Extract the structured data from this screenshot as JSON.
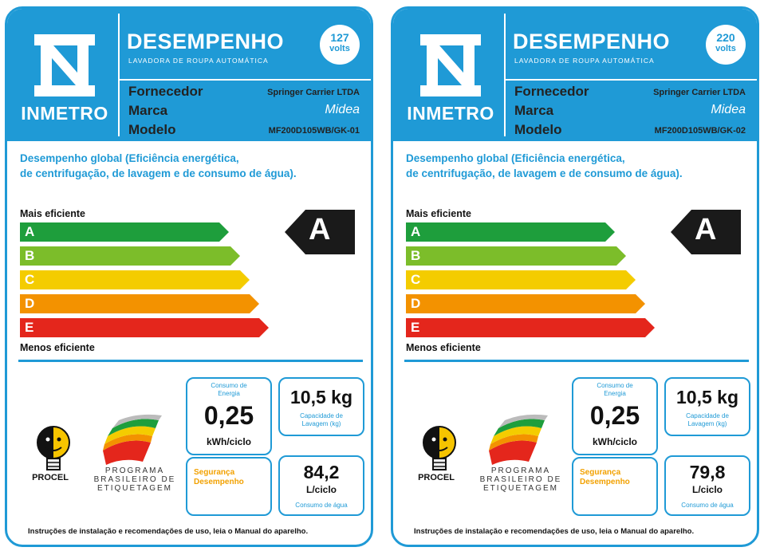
{
  "labels": [
    {
      "logo_text": "INMETRO",
      "title": "DESEMPENHO",
      "subtitle": "LAVADORA DE ROUPA AUTOMÁTICA",
      "volts_value": "127",
      "volts_unit": "volts",
      "fornecedor_label": "Fornecedor",
      "fornecedor_value": "Springer Carrier LTDA",
      "marca_label": "Marca",
      "marca_value": "Midea",
      "modelo_label": "Modelo",
      "modelo_value": "MF200D105WB/GK-01",
      "performance_line1": "Desempenho global (Eficiência energética,",
      "performance_line2": "de centrifugação, de lavagem e de consumo de água).",
      "mais_eficiente": "Mais eficiente",
      "menos_eficiente": "Menos eficiente",
      "classes": [
        "A",
        "B",
        "C",
        "D",
        "E"
      ],
      "rating": "A",
      "energy_caption": "Consumo de Energia",
      "energy_value": "0,25",
      "energy_unit": "kWh/ciclo",
      "capacity_value": "10,5 kg",
      "capacity_caption": "Capacidade de Lavagem (kg)",
      "safety_line1": "Segurança",
      "safety_line2": "Desempenho",
      "water_value": "84,2",
      "water_unit": "L/ciclo",
      "water_caption": "Consumo de água",
      "procel_text": "PROCEL",
      "pbe_line1": "PROGRAMA",
      "pbe_line2": "BRASILEIRO DE",
      "pbe_line3": "ETIQUETAGEM",
      "footer": "Instruções de instalação e recomendações de uso, leia o Manual do aparelho."
    },
    {
      "logo_text": "INMETRO",
      "title": "DESEMPENHO",
      "subtitle": "LAVADORA DE ROUPA AUTOMÁTICA",
      "volts_value": "220",
      "volts_unit": "volts",
      "fornecedor_label": "Fornecedor",
      "fornecedor_value": "Springer Carrier LTDA",
      "marca_label": "Marca",
      "marca_value": "Midea",
      "modelo_label": "Modelo",
      "modelo_value": "MF200D105WB/GK-02",
      "performance_line1": "Desempenho global (Eficiência energética,",
      "performance_line2": "de centrifugação, de lavagem e de consumo de água).",
      "mais_eficiente": "Mais eficiente",
      "menos_eficiente": "Menos eficiente",
      "classes": [
        "A",
        "B",
        "C",
        "D",
        "E"
      ],
      "rating": "A",
      "energy_caption": "Consumo de Energia",
      "energy_value": "0,25",
      "energy_unit": "kWh/ciclo",
      "capacity_value": "10,5 kg",
      "capacity_caption": "Capacidade de Lavagem (kg)",
      "safety_line1": "Segurança",
      "safety_line2": "Desempenho",
      "water_value": "79,8",
      "water_unit": "L/ciclo",
      "water_caption": "Consumo de água",
      "procel_text": "PROCEL",
      "pbe_line1": "PROGRAMA",
      "pbe_line2": "BRASILEIRO DE",
      "pbe_line3": "ETIQUETAGEM",
      "footer": "Instruções de instalação e recomendações de uso, leia o Manual do aparelho."
    }
  ],
  "colors": {
    "brand_blue": "#1f9ad6",
    "class_A": "#1e9e3c",
    "class_B": "#7cbd2a",
    "class_C": "#f4cc00",
    "class_D": "#f39200",
    "class_E": "#e4261c",
    "rating_bg": "#1a1a1a",
    "safety_text": "#f2a100"
  },
  "icons": [
    "inmetro-logo-icon",
    "procel-lightbulb-icon",
    "pbe-flag-icon"
  ]
}
